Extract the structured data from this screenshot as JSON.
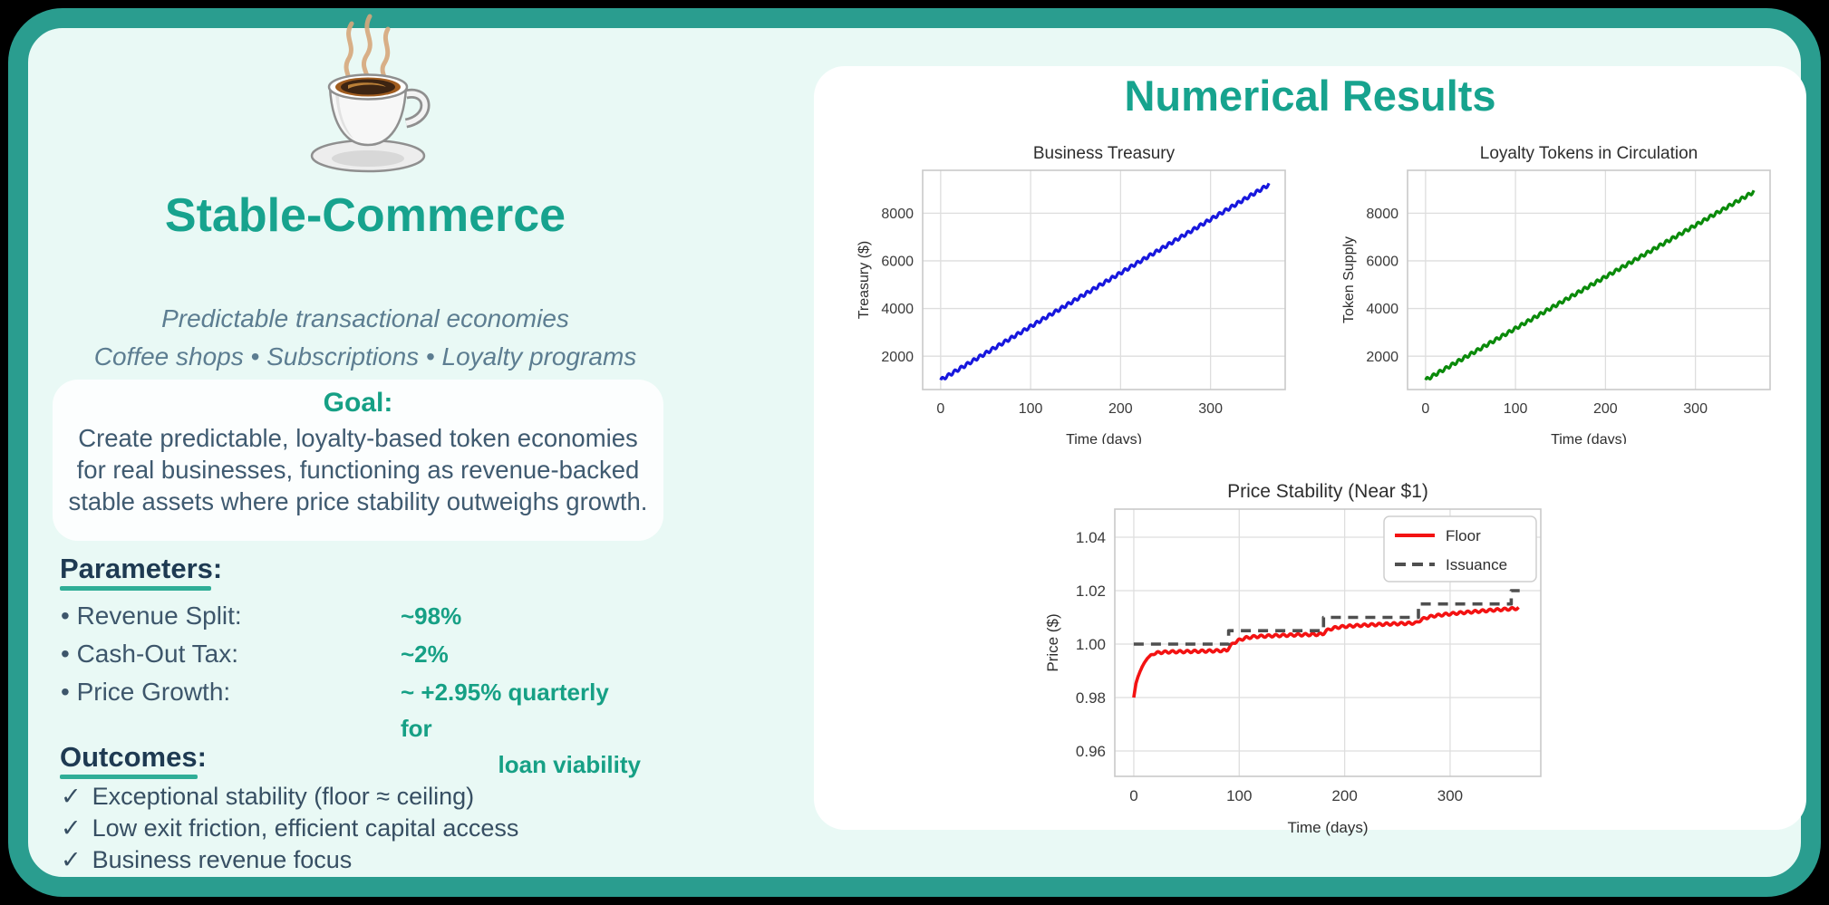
{
  "colors": {
    "border_teal": "#2a9d8f",
    "background_mint": "#e9f9f5",
    "accent_teal_text": "#17a38e",
    "value_teal": "#16a085",
    "dark_heading": "#1e3a52",
    "body_slate": "#3f5a70",
    "subtitle_slate": "#5c7d91",
    "treasury_line": "#1717dd",
    "token_line": "#0a8a0a",
    "floor_line": "#f31212",
    "issuance_line": "#4f4f4f"
  },
  "card": {
    "logo_icon": "coffee-cup-icon",
    "title": "Stable-Commerce",
    "subtitle_line1": "Predictable transactional economies",
    "subtitle_line2": "Coffee shops • Subscriptions • Loyalty programs",
    "goal": {
      "heading": "Goal:",
      "text": "Create predictable, loyalty-based token economies for real businesses, functioning as revenue-backed stable assets where price stability outweighs growth."
    },
    "parameters": {
      "heading": "Parameters:",
      "items": [
        {
          "label": "• Revenue Split:",
          "value_lines": [
            "~98%"
          ]
        },
        {
          "label": "• Cash-Out Tax:",
          "value_lines": [
            "~2%"
          ]
        },
        {
          "label": "• Price Growth:",
          "value_lines": [
            "~ +2.95% quarterly for",
            "loan viability"
          ]
        }
      ]
    },
    "outcomes": {
      "heading": "Outcomes:",
      "check": "✓",
      "items": [
        "Exceptional stability (floor ≈ ceiling)",
        "Low exit friction, efficient capital access",
        "Business revenue focus"
      ]
    }
  },
  "results": {
    "heading": "Numerical Results"
  },
  "chart_data": [
    {
      "id": "treasury",
      "type": "line",
      "title": "Business Treasury",
      "xlabel": "Time (days)",
      "ylabel": "Treasury ($)",
      "xlim": [
        -20,
        383
      ],
      "ylim": [
        600,
        9800
      ],
      "xticks": [
        0,
        100,
        200,
        300
      ],
      "xtick_labels": [
        "0",
        "100",
        "200",
        "300"
      ],
      "yticks": [
        2000,
        4000,
        6000,
        8000
      ],
      "ytick_labels": [
        "2000",
        "4000",
        "6000",
        "8000"
      ],
      "grid": true,
      "series": [
        {
          "name": "Treasury",
          "model": "linear_with_weekly_wiggle",
          "color": "#1717dd",
          "width": 3.2,
          "x_start": 0,
          "x_end": 365,
          "start": 1000,
          "end": 9200,
          "wiggle_amplitude": 70,
          "wiggle_period_days": 7
        }
      ]
    },
    {
      "id": "tokens",
      "type": "line",
      "title": "Loyalty Tokens in Circulation",
      "xlabel": "Time (days)",
      "ylabel": "Token Supply",
      "xlim": [
        -20,
        383
      ],
      "ylim": [
        600,
        9800
      ],
      "xticks": [
        0,
        100,
        200,
        300
      ],
      "xtick_labels": [
        "0",
        "100",
        "200",
        "300"
      ],
      "yticks": [
        2000,
        4000,
        6000,
        8000
      ],
      "ytick_labels": [
        "2000",
        "4000",
        "6000",
        "8000"
      ],
      "grid": true,
      "series": [
        {
          "name": "Token Supply",
          "model": "linear_with_weekly_wiggle",
          "color": "#0a8a0a",
          "width": 3.2,
          "x_start": 0,
          "x_end": 365,
          "start": 1000,
          "end": 8900,
          "wiggle_amplitude": 70,
          "wiggle_period_days": 7
        }
      ]
    },
    {
      "id": "price",
      "type": "line",
      "title": "Price Stability (Near $1)",
      "xlabel": "Time (days)",
      "ylabel": "Price ($)",
      "xlim": [
        -18,
        386
      ],
      "ylim": [
        0.9505,
        1.0505
      ],
      "xticks": [
        0,
        100,
        200,
        300
      ],
      "xtick_labels": [
        "0",
        "100",
        "200",
        "300"
      ],
      "yticks": [
        0.96,
        0.98,
        1.0,
        1.02,
        1.04
      ],
      "ytick_labels": [
        "0.96",
        "0.98",
        "1.00",
        "1.02",
        "1.04"
      ],
      "grid": true,
      "legend": {
        "position": "top-right",
        "entries": [
          {
            "label": "Floor",
            "color": "#f31212",
            "dash": "none"
          },
          {
            "label": "Issuance",
            "color": "#4f4f4f",
            "dash": "dashed"
          }
        ]
      },
      "series": [
        {
          "name": "Floor",
          "model": "keypoints_with_weekly_wiggle",
          "color": "#f31212",
          "width": 3.6,
          "keypoints": [
            [
              0,
              0.98
            ],
            [
              2,
              0.9852
            ],
            [
              4,
              0.9878
            ],
            [
              6,
              0.9898
            ],
            [
              8,
              0.9915
            ],
            [
              10,
              0.993
            ],
            [
              13,
              0.9947
            ],
            [
              16,
              0.9958
            ],
            [
              20,
              0.9965
            ],
            [
              25,
              0.9969
            ],
            [
              35,
              0.9971
            ],
            [
              50,
              0.9972
            ],
            [
              70,
              0.9974
            ],
            [
              88,
              0.9976
            ],
            [
              91,
              0.999
            ],
            [
              95,
              1.0005
            ],
            [
              100,
              1.0015
            ],
            [
              106,
              1.0023
            ],
            [
              115,
              1.0028
            ],
            [
              130,
              1.0031
            ],
            [
              150,
              1.0034
            ],
            [
              170,
              1.0036
            ],
            [
              179,
              1.0037
            ],
            [
              182,
              1.0048
            ],
            [
              186,
              1.0056
            ],
            [
              192,
              1.0062
            ],
            [
              200,
              1.0066
            ],
            [
              215,
              1.007
            ],
            [
              235,
              1.0074
            ],
            [
              255,
              1.0077
            ],
            [
              268,
              1.0079
            ],
            [
              272,
              1.009
            ],
            [
              277,
              1.0098
            ],
            [
              284,
              1.0105
            ],
            [
              295,
              1.0111
            ],
            [
              310,
              1.0117
            ],
            [
              325,
              1.0122
            ],
            [
              340,
              1.0127
            ],
            [
              355,
              1.0131
            ],
            [
              365,
              1.0134
            ]
          ],
          "wiggle_amplitude": 0.00045,
          "wiggle_period_days": 7,
          "wiggle_start_day": 16
        },
        {
          "name": "Issuance",
          "model": "steps",
          "color": "#4f4f4f",
          "width": 3.6,
          "dash": "11 8",
          "steps": [
            {
              "x0": 0,
              "x1": 90,
              "value": 1.0
            },
            {
              "x0": 90,
              "x1": 180,
              "value": 1.005
            },
            {
              "x0": 180,
              "x1": 270,
              "value": 1.01
            },
            {
              "x0": 270,
              "x1": 358,
              "value": 1.015
            },
            {
              "x0": 358,
              "x1": 366,
              "value": 1.02
            }
          ]
        }
      ]
    }
  ]
}
